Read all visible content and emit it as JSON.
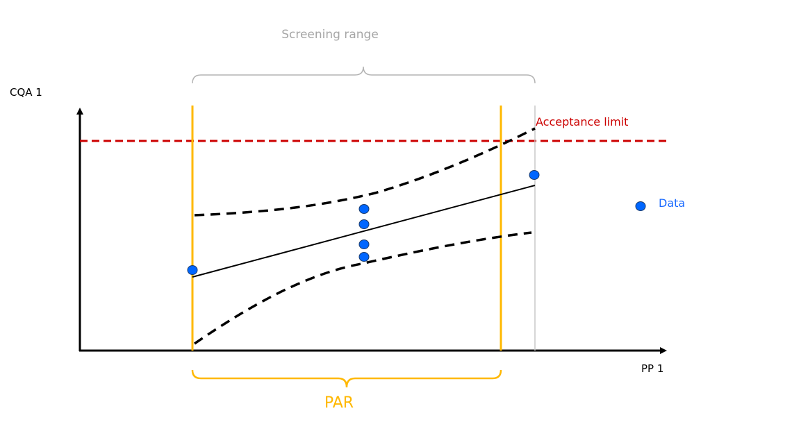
{
  "labels": {
    "screening_range": "Screening range",
    "y_axis": "CQA 1",
    "x_axis": "PP 1",
    "acceptance_limit": "Acceptance limit",
    "data_legend": "Data",
    "par": "PAR"
  },
  "colors": {
    "acceptance_limit": "#cc0000",
    "par": "#ffb800",
    "screening_range": "#b3b3b3",
    "data_points": "#0066ff",
    "axes": "#000000"
  }
}
